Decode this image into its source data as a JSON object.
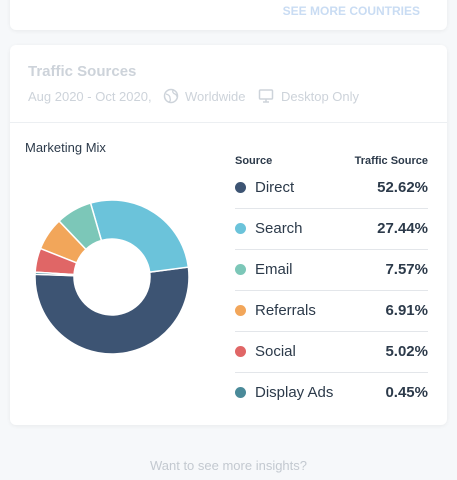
{
  "top_link": "SEE MORE COUNTRIES",
  "card": {
    "title": "Traffic Sources",
    "date_range": "Aug 2020 - Oct 2020,",
    "region": "Worldwide",
    "device": "Desktop Only"
  },
  "chart_data": {
    "type": "donut",
    "title": "Marketing Mix",
    "legend_headers": [
      "Source",
      "Traffic Source"
    ],
    "categories": [
      "Direct",
      "Search",
      "Email",
      "Referrals",
      "Social",
      "Display Ads"
    ],
    "values": [
      52.62,
      27.44,
      7.57,
      6.91,
      5.02,
      0.45
    ],
    "value_labels": [
      "52.62%",
      "27.44%",
      "7.57%",
      "6.91%",
      "5.02%",
      "0.45%"
    ],
    "colors": [
      "#3d5473",
      "#6bc3da",
      "#7cc7b8",
      "#f2a65a",
      "#e06666",
      "#4a8a99"
    ]
  },
  "footer": "Want to see more insights?"
}
